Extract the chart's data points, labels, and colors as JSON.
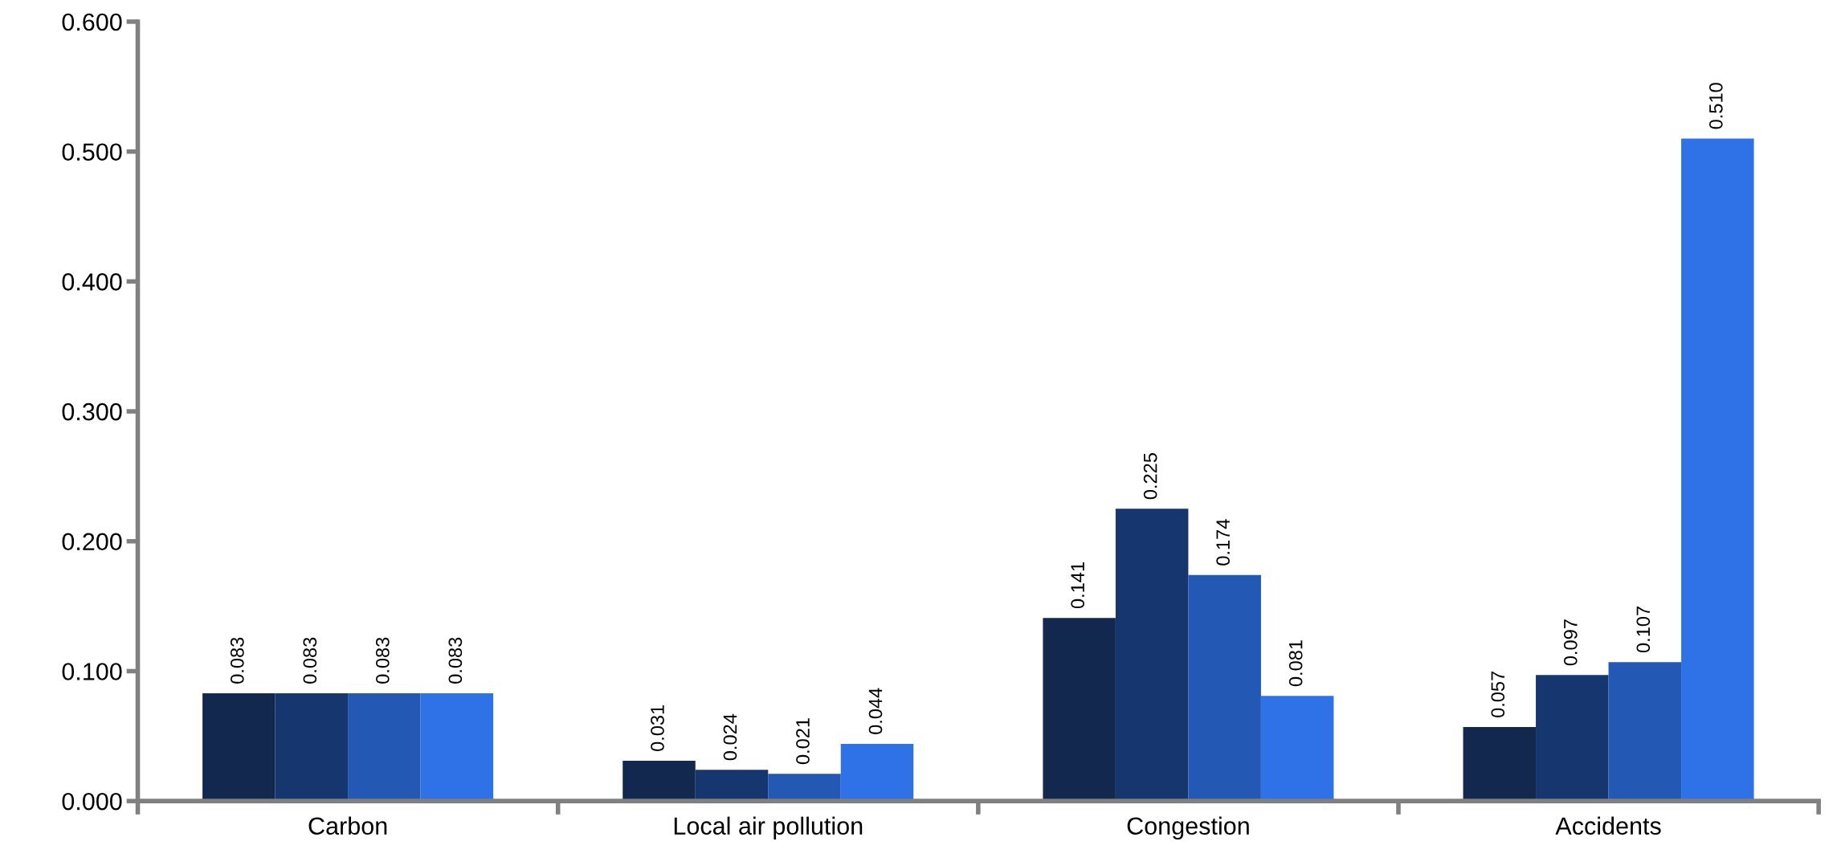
{
  "chart_data": {
    "type": "bar",
    "categories": [
      "Carbon",
      "Local air pollution",
      "Congestion",
      "Accidents"
    ],
    "series": [
      {
        "color": "#13284f",
        "values": [
          0.083,
          0.031,
          0.141,
          0.057
        ],
        "value_labels": [
          "0.083",
          "0.031",
          "0.141",
          "0.057"
        ]
      },
      {
        "color": "#163670",
        "values": [
          0.083,
          0.024,
          0.225,
          0.097
        ],
        "value_labels": [
          "0.083",
          "0.024",
          "0.225",
          "0.097"
        ]
      },
      {
        "color": "#2358b5",
        "values": [
          0.083,
          0.021,
          0.174,
          0.107
        ],
        "value_labels": [
          "0.083",
          "0.021",
          "0.174",
          "0.107"
        ]
      },
      {
        "color": "#2f72e8",
        "values": [
          0.083,
          0.044,
          0.081,
          0.51
        ],
        "value_labels": [
          "0.083",
          "0.044",
          "0.081",
          "0.510"
        ]
      }
    ],
    "ylim": [
      0,
      0.6
    ],
    "yticks": [
      {
        "value": 0,
        "label": "0.000"
      },
      {
        "value": 0.1,
        "label": "0.100"
      },
      {
        "value": 0.2,
        "label": "0.200"
      },
      {
        "value": 0.3,
        "label": "0.300"
      },
      {
        "value": 0.4,
        "label": "0.400"
      },
      {
        "value": 0.5,
        "label": "0.500"
      },
      {
        "value": 0.6,
        "label": "0.600"
      }
    ],
    "grid": false
  }
}
